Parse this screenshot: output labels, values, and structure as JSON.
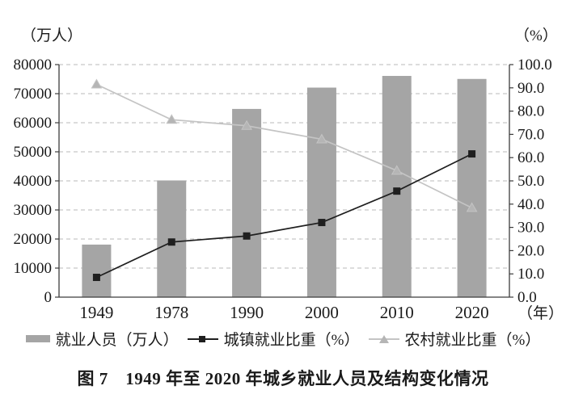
{
  "figure": {
    "caption": "图 7　1949 年至 2020 年城乡就业人员及结构变化情况"
  },
  "chart_data": {
    "type": "bar+line combo",
    "categories": [
      "1949",
      "1978",
      "1990",
      "2000",
      "2010",
      "2020"
    ],
    "x_axis": {
      "unit_label": "（年）"
    },
    "left_axis": {
      "unit_label": "（万人）",
      "min": 0,
      "max": 80000,
      "step": 10000,
      "applies_to": "就业人员（万人）"
    },
    "right_axis": {
      "unit_label": "（%）",
      "min": 0,
      "max": 100,
      "step": 10,
      "decimals": 1,
      "applies_to": "就业比重（%）"
    },
    "grid": {
      "horizontal": true,
      "style": "dashed"
    },
    "legend_position": "bottom",
    "colors": {
      "grid": "#b9b9b9",
      "axis": "#3c3c3c",
      "text": "#1a1a1a",
      "background": "#ffffff"
    },
    "series": [
      {
        "name": "就业人员（万人）",
        "type": "bar",
        "axis": "left",
        "color": "#a5a5a5",
        "values": [
          18082,
          40152,
          64749,
          72085,
          76105,
          75064
        ]
      },
      {
        "name": "城镇就业比重（%）",
        "type": "line",
        "axis": "right",
        "marker": "square",
        "color": "#1f1f1f",
        "values": [
          8.5,
          23.7,
          26.3,
          32.1,
          45.6,
          61.6
        ]
      },
      {
        "name": "农村就业比重（%）",
        "type": "line",
        "axis": "right",
        "marker": "triangle",
        "color": "#c4c4c4",
        "marker_fill": "#b5b5b5",
        "values": [
          91.5,
          76.3,
          73.7,
          67.9,
          54.4,
          38.4
        ]
      }
    ]
  }
}
